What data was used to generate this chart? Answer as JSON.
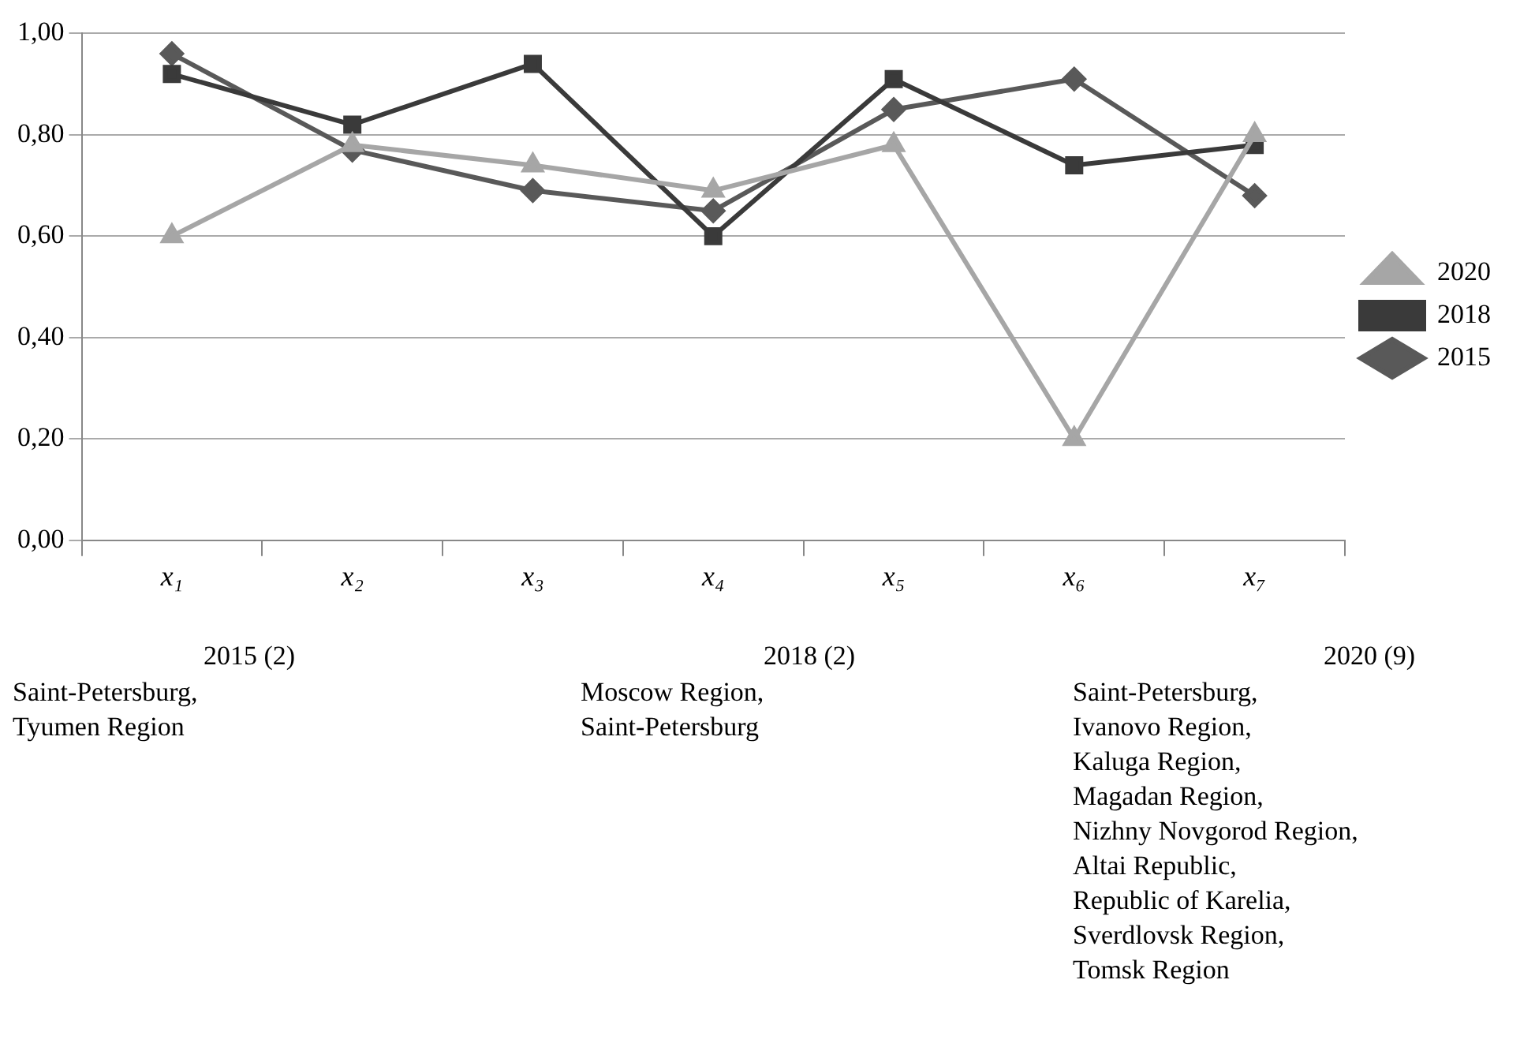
{
  "chart_data": {
    "type": "line",
    "categories": [
      "x₁",
      "x₂",
      "x₃",
      "x₄",
      "x₅",
      "x₆",
      "x₇"
    ],
    "series": [
      {
        "name": "2015",
        "color": "#595959",
        "marker": "diamond",
        "values": [
          0.96,
          0.77,
          0.69,
          0.65,
          0.85,
          0.91,
          0.68
        ]
      },
      {
        "name": "2018",
        "color": "#3a3a3a",
        "marker": "square",
        "values": [
          0.92,
          0.82,
          0.94,
          0.6,
          0.91,
          0.74,
          0.78
        ]
      },
      {
        "name": "2020",
        "color": "#a6a6a6",
        "marker": "triangle",
        "values": [
          0.6,
          0.78,
          0.74,
          0.69,
          0.78,
          0.2,
          0.8
        ]
      }
    ],
    "ylim": [
      0,
      1
    ],
    "yticks": [
      {
        "value": 0,
        "label": "0,00"
      },
      {
        "value": 0.2,
        "label": "0,20"
      },
      {
        "value": 0.4,
        "label": "0,40"
      },
      {
        "value": 0.6,
        "label": "0,60"
      },
      {
        "value": 0.8,
        "label": "0,80"
      },
      {
        "value": 1,
        "label": "1,00"
      }
    ],
    "grid": "y",
    "legend": "right",
    "line_style": "solid",
    "annotations": [
      "2015 (2)",
      "Saint-Petersburg,\nTyumen Region",
      "2018 (2)",
      "Moscow Region,\nSaint-Petersburg",
      "2020 (9)",
      "Saint-Petersburg,\nIvanovo Region,\nKaluga Region,\nMagadan Region,\nNizhny Novgorod Region,\nAltai Republic,\nRepublic of Karelia,\nSverdlovsk Region,\nTomsk Region"
    ]
  }
}
